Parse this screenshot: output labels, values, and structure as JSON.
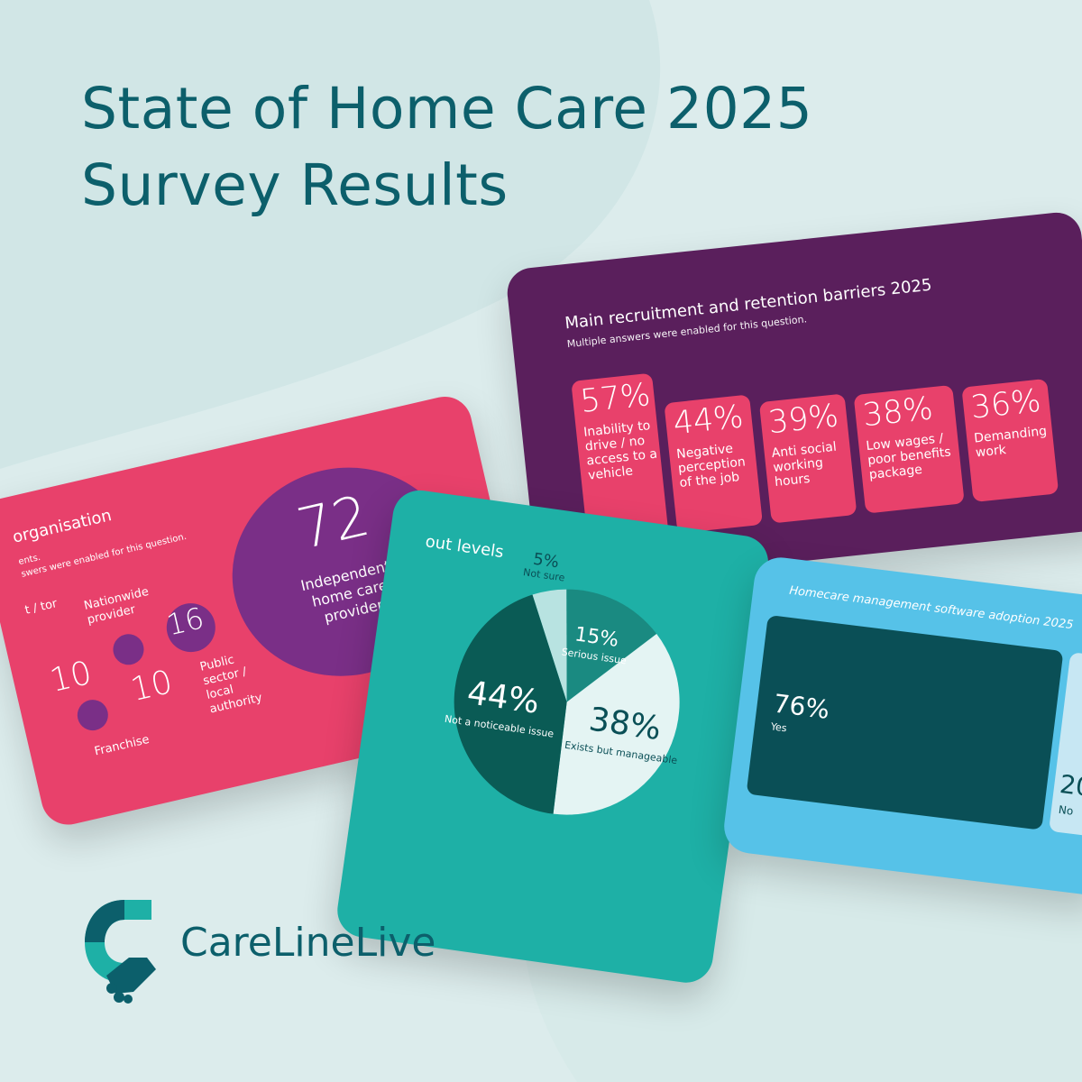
{
  "title": {
    "line1": "State of Home Care 2025",
    "line2": "Survey Results"
  },
  "barriers": {
    "title": "Main recruitment and retention barriers 2025",
    "subtitle": "Multiple answers were enabled for this question.",
    "items": [
      {
        "pct": "57%",
        "label": "Inability to drive / no access to a vehicle"
      },
      {
        "pct": "44%",
        "label": "Negative perception of the job"
      },
      {
        "pct": "39%",
        "label": "Anti social working hours"
      },
      {
        "pct": "38%",
        "label": "Low wages / poor benefits package"
      },
      {
        "pct": "36%",
        "label": "Demanding work"
      }
    ]
  },
  "organisation": {
    "title": "organisation",
    "subtitle1": "ents.",
    "subtitle2": "swers were enabled for this question.",
    "main_value": "72",
    "main_label": "Independent home care provider",
    "nationwide_label": "Nationwide provider",
    "nationwide_value": "10",
    "franchise_value": "10",
    "franchise_label": "Franchise",
    "public_value": "16",
    "public_label": "Public sector / local authority",
    "partial_label": "t / tor"
  },
  "burnout": {
    "title": "out levels",
    "chart_data": {
      "type": "pie",
      "slices": [
        {
          "label": "Not a noticeable issue",
          "value": 44,
          "pct_label": "44%",
          "color": "#0a5b55"
        },
        {
          "label": "Exists but manageable",
          "value": 38,
          "pct_label": "38%",
          "color": "#e4f4f3"
        },
        {
          "label": "Serious issue",
          "value": 15,
          "pct_label": "15%",
          "color": "#1a8a81"
        },
        {
          "label": "Not sure",
          "value": 5,
          "pct_label": "5%",
          "color": "#b8e3e1"
        }
      ]
    }
  },
  "software": {
    "title": "Homecare management software adoption 2025",
    "yes_pct": "76%",
    "yes_label": "Yes",
    "no_pct": "20",
    "no_label": "No"
  },
  "brand": {
    "name": "CareLineLive",
    "colors": {
      "primary": "#0c5f6b",
      "accent": "#1eb0a6"
    }
  }
}
